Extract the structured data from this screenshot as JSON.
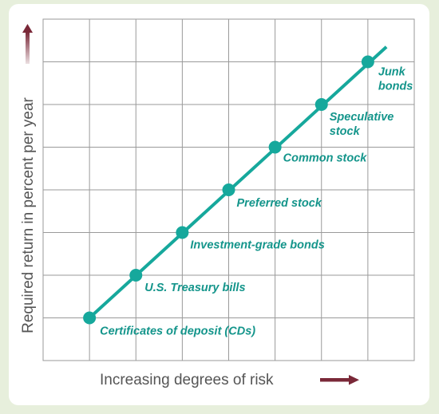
{
  "chart_data": {
    "type": "line",
    "title": "",
    "xlabel": "Increasing degrees of risk",
    "ylabel": "Required return in percent per year",
    "grid": true,
    "x_axis_cells": 8,
    "y_axis_cells": 8,
    "points": [
      {
        "label": "Certificates of deposit (CDs)",
        "x": 1,
        "y": 1
      },
      {
        "label": "U.S. Treasury bills",
        "x": 2,
        "y": 2
      },
      {
        "label": "Investment-grade bonds",
        "x": 3,
        "y": 3
      },
      {
        "label": "Preferred stock",
        "x": 4,
        "y": 4
      },
      {
        "label": "Common stock",
        "x": 5,
        "y": 5
      },
      {
        "label": "Speculative stock",
        "x": 6,
        "y": 6
      },
      {
        "label": "Junk bonds",
        "x": 7,
        "y": 7
      }
    ],
    "line_extends_to": {
      "x": 7.4,
      "y": 7.35
    },
    "colors": {
      "series": "#16a89c",
      "labels": "#14958b",
      "arrows": "#7a2838",
      "grid": "#9a9a9a",
      "axis_text": "#555555",
      "background": "#e7efdc"
    }
  }
}
